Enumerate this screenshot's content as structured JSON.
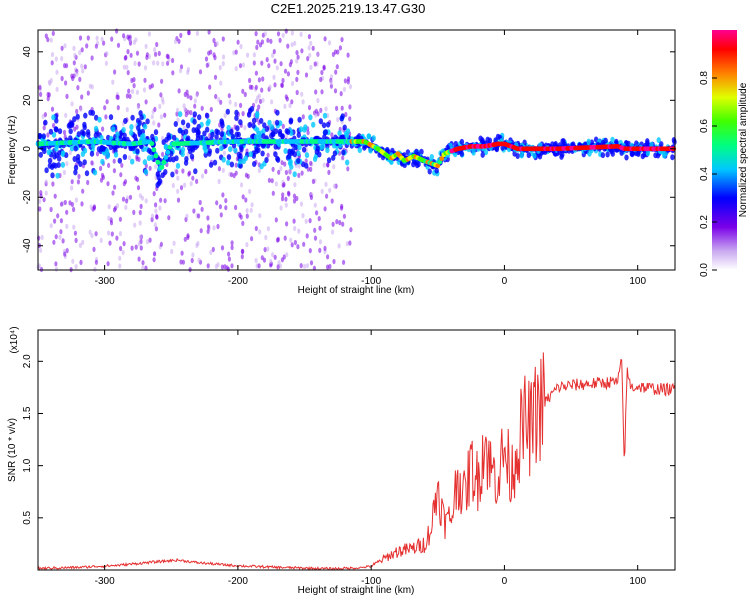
{
  "title": "C2E1.2025.219.13.47.G30",
  "colors": {
    "background": "#ffffff",
    "snr_line": "#e53030",
    "axes": "#000000"
  },
  "chart_data": [
    {
      "type": "heatmap",
      "xlabel": "Height of straight line (km)",
      "ylabel": "Frequency (Hz)",
      "xlim": [
        -350,
        128
      ],
      "ylim": [
        -50,
        49
      ],
      "x_ticks": [
        "-300",
        "-200",
        "-100",
        "0",
        "100"
      ],
      "y_ticks": [
        "-40",
        "-20",
        "0",
        "20",
        "40"
      ],
      "colorbar": {
        "label": "Normalized spectral amplitude",
        "range": [
          0,
          1
        ],
        "ticks": [
          "0.0",
          "0.2",
          "0.4",
          "0.6",
          "0.8"
        ],
        "colormap": "rainbow (white-purple-blue-cyan-green-yellow-red-magenta)"
      },
      "ridge": {
        "x": [
          -350,
          -310,
          -280,
          -265,
          -258,
          -250,
          -200,
          -150,
          -120,
          -105,
          -95,
          -85,
          -80,
          -75,
          -68,
          -60,
          -55,
          -50,
          -45,
          -40,
          -35,
          -25,
          -15,
          -5,
          0,
          10,
          40,
          85,
          90,
          128
        ],
        "y": [
          2,
          3,
          2,
          3,
          -9,
          2,
          3,
          3,
          3,
          3,
          0,
          -4,
          -2,
          -5,
          -3,
          -5,
          -6,
          -7,
          -2,
          -1,
          0,
          1,
          1,
          2,
          2,
          0,
          0,
          1,
          0,
          0
        ]
      }
    },
    {
      "type": "line",
      "xlabel": "Height of straight line (km)",
      "ylabel": "SNR (10 * v/v)",
      "y_multiplier": "(x10⁴)",
      "xlim": [
        -350,
        128
      ],
      "ylim": [
        0,
        23000
      ],
      "x_ticks": [
        "-300",
        "-200",
        "-100",
        "0",
        "100"
      ],
      "y_ticks": [
        "0.5",
        "1.0",
        "1.5",
        "2.0"
      ],
      "series": [
        {
          "x": [
            -350,
            -320,
            -290,
            -260,
            -245,
            -230,
            -200,
            -170,
            -150,
            -130,
            -110,
            -100,
            -90,
            -80,
            -70,
            -60,
            -55,
            -50,
            -45,
            -40,
            -35,
            -30,
            -25,
            -20,
            -15,
            -10,
            -5,
            0,
            5,
            10,
            15,
            20,
            25,
            30,
            40,
            50,
            60,
            70,
            80,
            85,
            88,
            90,
            92,
            95,
            100,
            110,
            120,
            128
          ],
          "y": [
            150,
            250,
            450,
            800,
            950,
            700,
            400,
            250,
            180,
            120,
            200,
            350,
            1100,
            1800,
            2000,
            2500,
            4000,
            8000,
            4500,
            5000,
            9000,
            7000,
            10000,
            8500,
            12500,
            9500,
            9000,
            11500,
            9000,
            12000,
            14000,
            13500,
            15500,
            16000,
            17500,
            17700,
            17800,
            17900,
            18000,
            18000,
            20000,
            10000,
            19000,
            17500,
            17600,
            17400,
            17300,
            17300
          ]
        }
      ]
    }
  ]
}
